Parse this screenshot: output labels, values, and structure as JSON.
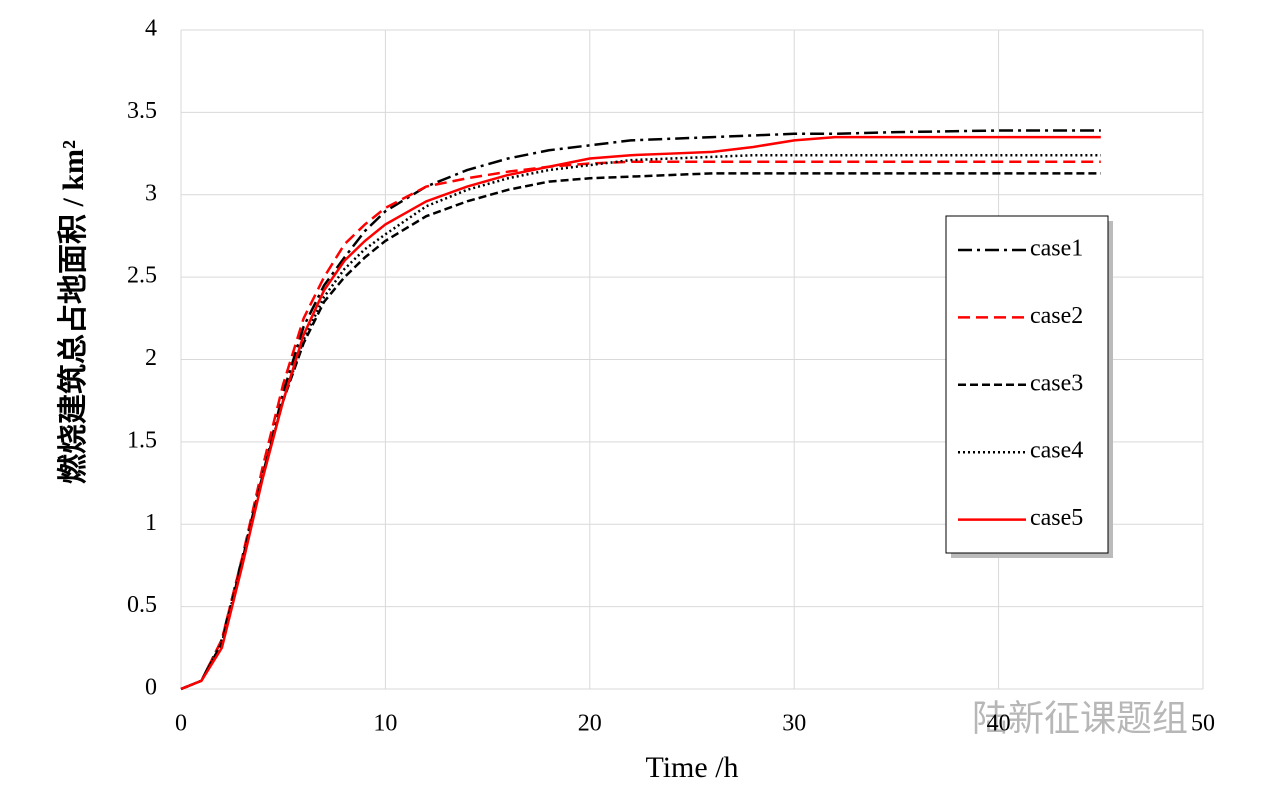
{
  "chart_data": {
    "type": "line",
    "xlabel": "Time /h",
    "ylabel": "燃烧建筑总占地面积 / km²",
    "watermark": "陆新征课题组",
    "x": [
      0,
      1,
      2,
      3,
      4,
      5,
      6,
      7,
      8,
      9,
      10,
      12,
      14,
      16,
      18,
      20,
      22,
      24,
      26,
      28,
      30,
      32,
      35,
      40,
      45
    ],
    "series": [
      {
        "name": "case1",
        "color": "#000000",
        "dash": "14,5,3,5",
        "values": [
          0,
          0.05,
          0.3,
          0.8,
          1.3,
          1.8,
          2.2,
          2.45,
          2.62,
          2.78,
          2.9,
          3.05,
          3.15,
          3.22,
          3.27,
          3.3,
          3.33,
          3.34,
          3.35,
          3.36,
          3.37,
          3.37,
          3.38,
          3.39,
          3.39
        ]
      },
      {
        "name": "case2",
        "color": "#ff0000",
        "dash": "12,6",
        "values": [
          0,
          0.05,
          0.3,
          0.8,
          1.35,
          1.85,
          2.25,
          2.5,
          2.7,
          2.82,
          2.92,
          3.05,
          3.1,
          3.14,
          3.17,
          3.19,
          3.2,
          3.2,
          3.2,
          3.2,
          3.2,
          3.2,
          3.2,
          3.2,
          3.2
        ]
      },
      {
        "name": "case3",
        "color": "#000000",
        "dash": "8,4",
        "values": [
          0,
          0.05,
          0.28,
          0.78,
          1.3,
          1.75,
          2.1,
          2.35,
          2.5,
          2.62,
          2.72,
          2.87,
          2.96,
          3.03,
          3.08,
          3.1,
          3.11,
          3.12,
          3.13,
          3.13,
          3.13,
          3.13,
          3.13,
          3.13,
          3.13
        ]
      },
      {
        "name": "case4",
        "color": "#000000",
        "dash": "2,3",
        "values": [
          0,
          0.05,
          0.28,
          0.78,
          1.3,
          1.75,
          2.12,
          2.38,
          2.55,
          2.67,
          2.76,
          2.93,
          3.03,
          3.1,
          3.15,
          3.18,
          3.21,
          3.22,
          3.23,
          3.24,
          3.24,
          3.24,
          3.24,
          3.24,
          3.24
        ]
      },
      {
        "name": "case5",
        "color": "#ff0000",
        "dash": "none",
        "values": [
          0,
          0.05,
          0.25,
          0.75,
          1.28,
          1.75,
          2.15,
          2.42,
          2.6,
          2.72,
          2.82,
          2.96,
          3.05,
          3.12,
          3.17,
          3.22,
          3.24,
          3.25,
          3.26,
          3.29,
          3.33,
          3.35,
          3.35,
          3.35,
          3.35
        ]
      }
    ],
    "xlim": [
      0,
      50
    ],
    "xticks": [
      0,
      10,
      20,
      30,
      40,
      50
    ],
    "ylim": [
      0,
      4
    ],
    "yticks": [
      0,
      0.5,
      1,
      1.5,
      2,
      2.5,
      3,
      3.5,
      4
    ],
    "grid": true,
    "legend": "right"
  }
}
